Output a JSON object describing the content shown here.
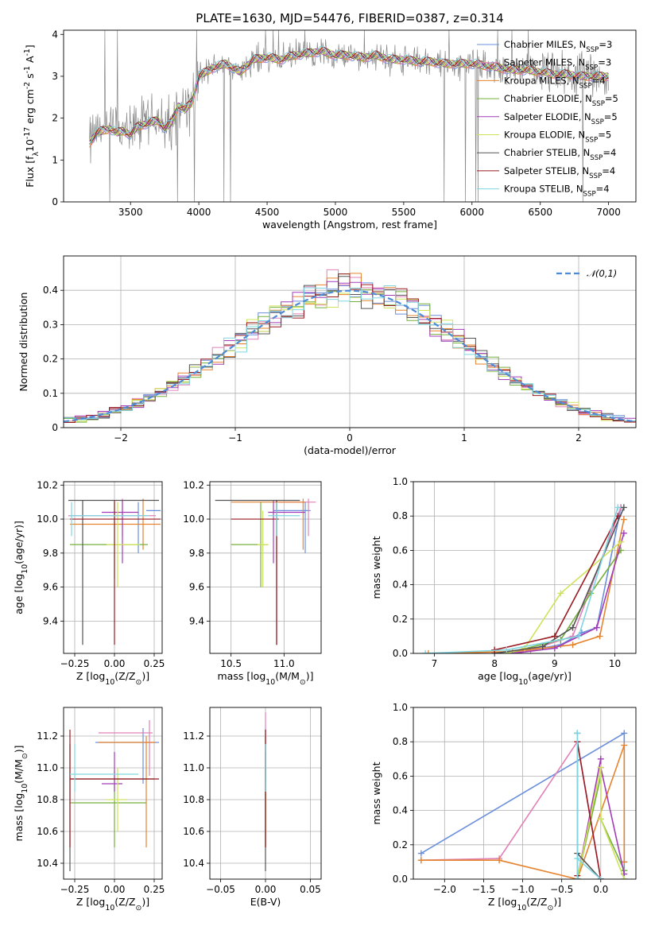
{
  "figure": {
    "title": "PLATE=1630, MJD=54476, FIBERID=0387, z=0.314"
  },
  "series": [
    {
      "label": "Chabrier MILES, N$_{SSP}$=3",
      "name": "Chabrier MILES",
      "nssp": "3",
      "color": "#6a8fdc"
    },
    {
      "label": "Salpeter MILES, N$_{SSP}$=3",
      "name": "Salpeter MILES",
      "nssp": "3",
      "color": "#e080b8"
    },
    {
      "label": "Kroupa MILES, N$_{SSP}$=4",
      "name": "Kroupa MILES",
      "nssp": "4",
      "color": "#e6832e"
    },
    {
      "label": "Chabrier ELODIE, N$_{SSP}$=5",
      "name": "Chabrier ELODIE",
      "nssp": "5",
      "color": "#75b03d"
    },
    {
      "label": "Salpeter ELODIE, N$_{SSP}$=5",
      "name": "Salpeter ELODIE",
      "nssp": "5",
      "color": "#a33cb8"
    },
    {
      "label": "Kroupa ELODIE, N$_{SSP}$=5",
      "name": "Kroupa ELODIE",
      "nssp": "5",
      "color": "#cfe35a"
    },
    {
      "label": "Chabrier STELIB, N$_{SSP}$=4",
      "name": "Chabrier STELIB",
      "nssp": "4",
      "color": "#555555"
    },
    {
      "label": "Salpeter STELIB, N$_{SSP}$=4",
      "name": "Salpeter STELIB",
      "nssp": "4",
      "color": "#9a1b22"
    },
    {
      "label": "Kroupa STELIB, N$_{SSP}$=4",
      "name": "Kroupa STELIB",
      "nssp": "4",
      "color": "#7fd6e0"
    }
  ],
  "chart_data": [
    {
      "id": "spectrum",
      "type": "line",
      "xlabel": "wavelength [Angstrom, rest frame]",
      "ylabel": "Flux [f$_\\lambda$10$^{-17}$ erg cm$^{-2}$ s$^{-1}$ A$^{-1}$]",
      "xlim": [
        3010,
        7200
      ],
      "ylim": [
        0,
        4.1
      ],
      "xticks": [
        3500,
        4000,
        4500,
        5000,
        5500,
        6000,
        6500,
        7000
      ],
      "yticks": [
        0,
        1,
        2,
        3,
        4
      ],
      "grid": false,
      "legend": "upper-right",
      "data_color": "#888888",
      "continuum": [
        [
          3200,
          1.4
        ],
        [
          3250,
          1.65
        ],
        [
          3300,
          1.7
        ],
        [
          3350,
          1.75
        ],
        [
          3400,
          1.65
        ],
        [
          3450,
          1.7
        ],
        [
          3500,
          1.6
        ],
        [
          3550,
          1.8
        ],
        [
          3600,
          1.85
        ],
        [
          3650,
          1.9
        ],
        [
          3700,
          1.95
        ],
        [
          3750,
          1.75
        ],
        [
          3800,
          1.9
        ],
        [
          3850,
          2.3
        ],
        [
          3900,
          2.2
        ],
        [
          3950,
          2.4
        ],
        [
          4000,
          3.0
        ],
        [
          4100,
          3.2
        ],
        [
          4200,
          3.3
        ],
        [
          4300,
          3.1
        ],
        [
          4400,
          3.4
        ],
        [
          4500,
          3.45
        ],
        [
          4600,
          3.4
        ],
        [
          4700,
          3.5
        ],
        [
          4800,
          3.55
        ],
        [
          4900,
          3.6
        ],
        [
          5000,
          3.5
        ],
        [
          5100,
          3.5
        ],
        [
          5200,
          3.45
        ],
        [
          5300,
          3.5
        ],
        [
          5400,
          3.4
        ],
        [
          5500,
          3.4
        ],
        [
          5600,
          3.35
        ],
        [
          5700,
          3.35
        ],
        [
          5800,
          3.3
        ],
        [
          5900,
          3.3
        ],
        [
          6000,
          3.3
        ],
        [
          6100,
          3.25
        ],
        [
          6200,
          3.2
        ],
        [
          6300,
          3.15
        ],
        [
          6400,
          3.15
        ],
        [
          6500,
          3.1
        ],
        [
          6600,
          3.05
        ],
        [
          6700,
          3.05
        ],
        [
          6800,
          3.0
        ],
        [
          6900,
          3.0
        ],
        [
          7000,
          3.0
        ]
      ]
    },
    {
      "id": "residuals",
      "type": "histogram",
      "xlabel": "(data-model)/error",
      "ylabel": "Normed distribution",
      "xlim": [
        -2.5,
        2.5
      ],
      "ylim": [
        0,
        0.5
      ],
      "xticks": [
        -2,
        -1,
        0,
        1,
        2
      ],
      "yticks": [
        0.0,
        0.1,
        0.2,
        0.3,
        0.4
      ],
      "grid": true,
      "legend": "upper-right",
      "bin_width": 0.1,
      "bin_start": -2.5,
      "reference": {
        "label": "$\\mathcal{N}(0,1)$",
        "mean": 0,
        "sigma": 1,
        "color": "#4f8ad6"
      }
    },
    {
      "id": "age-vs-Z",
      "type": "errorbar",
      "xlabel": "Z [log$_{10}$(Z/Z$_\\odot$)]",
      "ylabel": "age  [log$_{10}$(age/yr)]",
      "xlim": [
        -0.32,
        0.3
      ],
      "ylim": [
        9.21,
        10.22
      ],
      "xticks": [
        -0.25,
        0.0,
        0.25
      ],
      "yticks": [
        9.4,
        9.6,
        9.8,
        10.0,
        10.2
      ],
      "grid": true,
      "points": [
        {
          "x": 0.15,
          "y": 10.05,
          "ex": [
            0.2,
            0.29
          ],
          "ey": [
            9.8,
            10.1
          ],
          "c": 0
        },
        {
          "x": 0.05,
          "y": 10.02,
          "ex": [
            -0.29,
            0.26
          ],
          "ey": [
            9.9,
            10.12
          ],
          "c": 1
        },
        {
          "x": 0.18,
          "y": 9.97,
          "ex": [
            -0.28,
            0.29
          ],
          "ey": [
            9.82,
            10.12
          ],
          "c": 2
        },
        {
          "x": 0.0,
          "y": 9.85,
          "ex": [
            -0.28,
            0.21
          ],
          "ey": [
            9.65,
            10.1
          ],
          "c": 3
        },
        {
          "x": 0.05,
          "y": 10.04,
          "ex": [
            -0.08,
            0.15
          ],
          "ey": [
            9.74,
            10.11
          ],
          "c": 4
        },
        {
          "x": 0.02,
          "y": 9.85,
          "ex": [
            -0.05,
            0.16
          ],
          "ey": [
            9.6,
            10.1
          ],
          "c": 5
        },
        {
          "x": -0.2,
          "y": 10.11,
          "ex": [
            -0.29,
            0.28
          ],
          "ey": [
            9.26,
            10.11
          ],
          "c": 6
        },
        {
          "x": 0.0,
          "y": 10.0,
          "ex": [
            -0.28,
            0.29
          ],
          "ey": [
            9.26,
            10.11
          ],
          "c": 7
        },
        {
          "x": -0.27,
          "y": 10.02,
          "ex": [
            -0.28,
            0.22
          ],
          "ey": [
            9.9,
            10.1
          ],
          "c": 8
        }
      ]
    },
    {
      "id": "age-vs-mass",
      "type": "errorbar",
      "xlabel": "mass [log$_{10}$(M/M$_\\odot$)]",
      "ylabel": "",
      "xlim": [
        10.3,
        11.35
      ],
      "ylim": [
        9.21,
        10.22
      ],
      "xticks": [
        10.5,
        11.0
      ],
      "yticks": [
        9.4,
        9.6,
        9.8,
        10.0,
        10.2
      ],
      "grid": true,
      "points": [
        {
          "x": 11.2,
          "y": 10.05,
          "ex": [
            10.9,
            11.25
          ],
          "ey": [
            9.8,
            10.1
          ],
          "c": 0
        },
        {
          "x": 11.23,
          "y": 10.1,
          "ex": [
            10.95,
            11.3
          ],
          "ey": [
            9.9,
            10.12
          ],
          "c": 1
        },
        {
          "x": 11.18,
          "y": 10.1,
          "ex": [
            10.5,
            11.2
          ],
          "ey": [
            9.82,
            10.12
          ],
          "c": 2
        },
        {
          "x": 10.78,
          "y": 9.85,
          "ex": [
            10.5,
            10.85
          ],
          "ey": [
            9.6,
            10.1
          ],
          "c": 3
        },
        {
          "x": 10.9,
          "y": 10.04,
          "ex": [
            10.85,
            11.2
          ],
          "ey": [
            9.74,
            10.11
          ],
          "c": 4
        },
        {
          "x": 10.8,
          "y": 9.85,
          "ex": [
            10.75,
            10.85
          ],
          "ey": [
            9.6,
            10.05
          ],
          "c": 5
        },
        {
          "x": 10.93,
          "y": 10.11,
          "ex": [
            10.35,
            11.15
          ],
          "ey": [
            9.26,
            10.11
          ],
          "c": 6
        },
        {
          "x": 10.93,
          "y": 10.0,
          "ex": [
            10.5,
            10.95
          ],
          "ey": [
            9.26,
            10.11
          ],
          "c": 7
        },
        {
          "x": 10.93,
          "y": 10.02,
          "ex": [
            10.85,
            11.15
          ],
          "ey": [
            9.9,
            10.1
          ],
          "c": 8
        }
      ]
    },
    {
      "id": "massweight-vs-age",
      "type": "line",
      "xlabel": "age  [log$_{10}$(age/yr)]",
      "ylabel": "mass weight",
      "xlim": [
        6.65,
        10.35
      ],
      "ylim": [
        0,
        1.0
      ],
      "xticks": [
        7,
        8,
        9,
        10
      ],
      "yticks": [
        0.0,
        0.2,
        0.4,
        0.6,
        0.8,
        1.0
      ],
      "grid": true,
      "lines": [
        {
          "c": 0,
          "x": [
            8.3,
            9.1,
            9.45,
            9.7,
            10.1
          ],
          "y": [
            0.0,
            0.05,
            0.12,
            0.15,
            0.85
          ]
        },
        {
          "c": 1,
          "x": [
            8.3,
            8.6,
            9.3,
            10.1
          ],
          "y": [
            0.0,
            0.02,
            0.1,
            0.85
          ]
        },
        {
          "c": 2,
          "x": [
            6.9,
            8.3,
            9.3,
            9.75,
            10.15
          ],
          "y": [
            0.0,
            0.01,
            0.05,
            0.1,
            0.78
          ]
        },
        {
          "c": 3,
          "x": [
            8.2,
            9.1,
            9.6,
            10.1
          ],
          "y": [
            0.0,
            0.08,
            0.35,
            0.6
          ]
        },
        {
          "c": 4,
          "x": [
            8.3,
            9.0,
            9.7,
            10.15
          ],
          "y": [
            0.0,
            0.03,
            0.15,
            0.7
          ]
        },
        {
          "c": 5,
          "x": [
            8.2,
            8.5,
            9.1,
            10.1
          ],
          "y": [
            0.0,
            0.03,
            0.35,
            0.65
          ]
        },
        {
          "c": 6,
          "x": [
            8.0,
            8.8,
            9.3,
            10.15
          ],
          "y": [
            0.0,
            0.04,
            0.15,
            0.85
          ]
        },
        {
          "c": 7,
          "x": [
            8.0,
            9.0,
            10.05
          ],
          "y": [
            0.02,
            0.1,
            0.8
          ]
        },
        {
          "c": 8,
          "x": [
            6.85,
            8.2,
            9.4,
            10.05
          ],
          "y": [
            0.0,
            0.02,
            0.1,
            0.85
          ]
        }
      ]
    },
    {
      "id": "mass-vs-Z",
      "type": "errorbar",
      "xlabel": "Z [log$_{10}$(Z/Z$_\\odot$)]",
      "ylabel": "mass [log$_{10}$(M/M$_\\odot$)]",
      "xlim": [
        -0.32,
        0.3
      ],
      "ylim": [
        10.3,
        11.38
      ],
      "xticks": [
        -0.25,
        0.0,
        0.25
      ],
      "yticks": [
        10.4,
        10.6,
        10.8,
        11.0,
        11.2
      ],
      "grid": true,
      "points": [
        {
          "x": 0.18,
          "y": 11.16,
          "ex": [
            -0.12,
            0.28
          ],
          "ey": [
            10.9,
            11.25
          ],
          "c": 0
        },
        {
          "x": 0.22,
          "y": 11.22,
          "ex": [
            -0.1,
            0.24
          ],
          "ey": [
            10.95,
            11.3
          ],
          "c": 1
        },
        {
          "x": 0.2,
          "y": 11.16,
          "ex": [
            -0.1,
            0.26
          ],
          "ey": [
            10.5,
            11.2
          ],
          "c": 2
        },
        {
          "x": 0.0,
          "y": 10.78,
          "ex": [
            -0.28,
            0.2
          ],
          "ey": [
            10.5,
            10.98
          ],
          "c": 3
        },
        {
          "x": 0.0,
          "y": 10.9,
          "ex": [
            -0.08,
            0.05
          ],
          "ey": [
            10.85,
            11.1
          ],
          "c": 4
        },
        {
          "x": 0.02,
          "y": 10.8,
          "ex": [
            -0.05,
            0.08
          ],
          "ey": [
            10.6,
            11.0
          ],
          "c": 5
        },
        {
          "x": -0.28,
          "y": 10.93,
          "ex": [
            -0.28,
            0.25
          ],
          "ey": [
            10.35,
            11.15
          ],
          "c": 6
        },
        {
          "x": -0.28,
          "y": 10.93,
          "ex": [
            -0.28,
            0.28
          ],
          "ey": [
            10.5,
            11.24
          ],
          "c": 7
        },
        {
          "x": -0.25,
          "y": 10.96,
          "ex": [
            -0.28,
            0.15
          ],
          "ey": [
            10.85,
            11.15
          ],
          "c": 8
        }
      ]
    },
    {
      "id": "mass-vs-ebv",
      "type": "errorbar",
      "xlabel": "E(B-V)",
      "ylabel": "",
      "xlim": [
        -0.062,
        0.062
      ],
      "ylim": [
        10.3,
        11.38
      ],
      "xticks": [
        -0.05,
        0.0,
        0.05
      ],
      "yticks": [
        10.4,
        10.6,
        10.8,
        11.0,
        11.2
      ],
      "grid": true,
      "points": [
        {
          "x": 0.0,
          "y": 11.0,
          "ex": [
            0,
            0
          ],
          "ey": [
            10.9,
            11.25
          ],
          "c": 0
        },
        {
          "x": 0.0,
          "y": 11.1,
          "ex": [
            0,
            0
          ],
          "ey": [
            10.95,
            11.35
          ],
          "c": 1
        },
        {
          "x": 0.0,
          "y": 10.9,
          "ex": [
            0,
            0
          ],
          "ey": [
            10.5,
            11.2
          ],
          "c": 2
        },
        {
          "x": 0.0,
          "y": 10.78,
          "ex": [
            0,
            0
          ],
          "ey": [
            10.5,
            10.98
          ],
          "c": 3
        },
        {
          "x": 0.0,
          "y": 10.9,
          "ex": [
            0,
            0
          ],
          "ey": [
            10.85,
            11.1
          ],
          "c": 4
        },
        {
          "x": 0.0,
          "y": 10.8,
          "ex": [
            0,
            0
          ],
          "ey": [
            10.6,
            11.0
          ],
          "c": 5
        },
        {
          "x": 0.0,
          "y": 10.9,
          "ex": [
            0,
            0
          ],
          "ey": [
            10.35,
            11.15
          ],
          "c": 6
        },
        {
          "x": 0.0,
          "y": 10.9,
          "ex": [
            0,
            0
          ],
          "ey": [
            10.5,
            11.24
          ],
          "c": 7
        },
        {
          "x": 0.0,
          "y": 10.95,
          "ex": [
            0,
            0
          ],
          "ey": [
            10.85,
            11.15
          ],
          "c": 8
        }
      ]
    },
    {
      "id": "massweight-vs-Z",
      "type": "line",
      "xlabel": "Z [log$_{10}$(Z/Z$_\\odot$)]",
      "ylabel": "mass weight",
      "xlim": [
        -2.4,
        0.45
      ],
      "ylim": [
        0,
        1.0
      ],
      "xticks": [
        -2.0,
        -1.5,
        -1.0,
        -0.5,
        0.0
      ],
      "yticks": [
        0.0,
        0.2,
        0.4,
        0.6,
        0.8,
        1.0
      ],
      "grid": true,
      "lines": [
        {
          "c": 0,
          "x": [
            -2.3,
            0.3,
            0.3,
            0.3,
            0.3
          ],
          "y": [
            0.15,
            0.85,
            0.1,
            0.05,
            0.0
          ]
        },
        {
          "c": 1,
          "x": [
            -2.3,
            -1.3,
            -0.3,
            0.0
          ],
          "y": [
            0.11,
            0.12,
            0.8,
            0.0
          ]
        },
        {
          "c": 2,
          "x": [
            -2.3,
            -1.3,
            -0.3,
            0.3,
            0.3
          ],
          "y": [
            0.11,
            0.11,
            0.0,
            0.78,
            0.1
          ]
        },
        {
          "c": 3,
          "x": [
            -0.3,
            0.0,
            0.0,
            0.3
          ],
          "y": [
            0.0,
            0.6,
            0.35,
            0.05
          ]
        },
        {
          "c": 4,
          "x": [
            -0.3,
            0.0,
            0.0,
            0.3
          ],
          "y": [
            0.0,
            0.7,
            0.65,
            0.03
          ]
        },
        {
          "c": 5,
          "x": [
            -0.3,
            0.0,
            0.0,
            0.3
          ],
          "y": [
            0.0,
            0.65,
            0.35,
            0.0
          ]
        },
        {
          "c": 6,
          "x": [
            -0.3,
            -0.3,
            -0.3,
            0.0
          ],
          "y": [
            0.0,
            0.85,
            0.15,
            0.0
          ]
        },
        {
          "c": 7,
          "x": [
            -0.3,
            -0.3,
            0.0
          ],
          "y": [
            0.02,
            0.8,
            0.0
          ]
        },
        {
          "c": 8,
          "x": [
            -0.3,
            -0.3,
            -0.3,
            0.0
          ],
          "y": [
            0.0,
            0.85,
            0.12,
            0.0
          ]
        }
      ]
    }
  ]
}
